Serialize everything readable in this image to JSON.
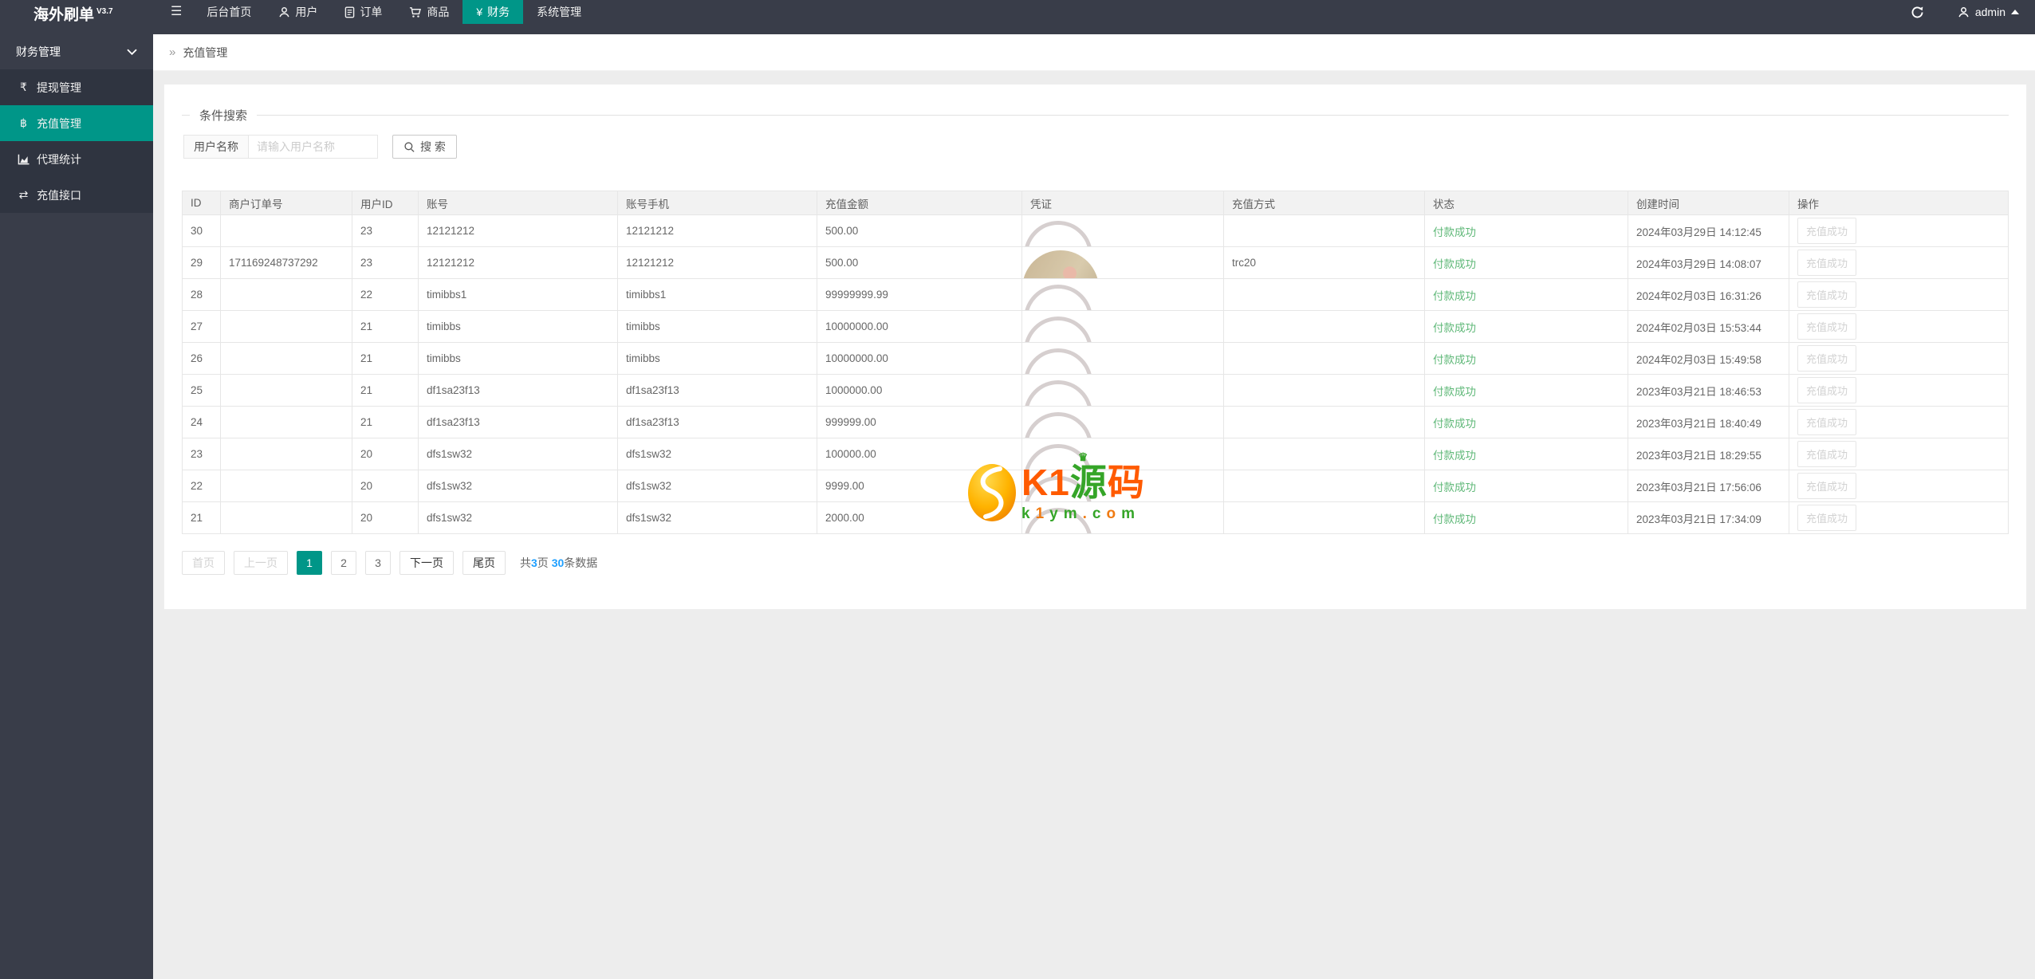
{
  "navbar": {
    "brand": "海外刷单",
    "version": "V3.7",
    "menu": [
      {
        "label": "后台首页",
        "icon": null,
        "glyph": null,
        "active": false
      },
      {
        "label": "用户",
        "icon": "user-icon",
        "glyph": null,
        "active": false
      },
      {
        "label": "订单",
        "icon": "order-icon",
        "glyph": null,
        "active": false
      },
      {
        "label": "商品",
        "icon": "cart-icon",
        "glyph": null,
        "active": false
      },
      {
        "label": "财务",
        "icon": "yen-icon",
        "glyph": "¥",
        "active": true
      },
      {
        "label": "系统管理",
        "icon": null,
        "glyph": null,
        "active": false
      }
    ],
    "hamburger_glyph": "☰",
    "user": "admin"
  },
  "sidebar": {
    "section_label": "财务管理",
    "items": [
      {
        "label": "提现管理",
        "icon": "withdraw-icon",
        "glyph": "₹",
        "active": false
      },
      {
        "label": "充值管理",
        "icon": "recharge-icon",
        "glyph": "฿",
        "active": true
      },
      {
        "label": "代理统计",
        "icon": "chart-icon",
        "glyph": null,
        "active": false
      },
      {
        "label": "充值接口",
        "icon": "exchange-icon",
        "glyph": "⇄",
        "active": false
      }
    ]
  },
  "breadcrumb": {
    "separator": "»",
    "title": "充值管理"
  },
  "search": {
    "legend": "条件搜索",
    "field_label": "用户名称",
    "placeholder": "请输入用户名称",
    "button_label": "搜 索"
  },
  "table": {
    "headers": [
      "ID",
      "商户订单号",
      "用户ID",
      "账号",
      "账号手机",
      "充值金额",
      "凭证",
      "充值方式",
      "状态",
      "创建时间",
      "操作"
    ],
    "rows": [
      {
        "id": "30",
        "order_no": "",
        "user_id": "23",
        "account": "12121212",
        "phone": "12121212",
        "amount": "500.00",
        "voucher": "ring",
        "method": "",
        "status": "付款成功",
        "created": "2024年03月29日 14:12:45",
        "action": "充值成功"
      },
      {
        "id": "29",
        "order_no": "171169248737292",
        "user_id": "23",
        "account": "12121212",
        "phone": "12121212",
        "amount": "500.00",
        "voucher": "photo",
        "method": "trc20",
        "status": "付款成功",
        "created": "2024年03月29日 14:08:07",
        "action": "充值成功"
      },
      {
        "id": "28",
        "order_no": "",
        "user_id": "22",
        "account": "timibbs1",
        "phone": "timibbs1",
        "amount": "99999999.99",
        "voucher": "ring",
        "method": "",
        "status": "付款成功",
        "created": "2024年02月03日 16:31:26",
        "action": "充值成功"
      },
      {
        "id": "27",
        "order_no": "",
        "user_id": "21",
        "account": "timibbs",
        "phone": "timibbs",
        "amount": "10000000.00",
        "voucher": "ring",
        "method": "",
        "status": "付款成功",
        "created": "2024年02月03日 15:53:44",
        "action": "充值成功"
      },
      {
        "id": "26",
        "order_no": "",
        "user_id": "21",
        "account": "timibbs",
        "phone": "timibbs",
        "amount": "10000000.00",
        "voucher": "ring",
        "method": "",
        "status": "付款成功",
        "created": "2024年02月03日 15:49:58",
        "action": "充值成功"
      },
      {
        "id": "25",
        "order_no": "",
        "user_id": "21",
        "account": "df1sa23f13",
        "phone": "df1sa23f13",
        "amount": "1000000.00",
        "voucher": "ring",
        "method": "",
        "status": "付款成功",
        "created": "2023年03月21日 18:46:53",
        "action": "充值成功"
      },
      {
        "id": "24",
        "order_no": "",
        "user_id": "21",
        "account": "df1sa23f13",
        "phone": "df1sa23f13",
        "amount": "999999.00",
        "voucher": "ring",
        "method": "",
        "status": "付款成功",
        "created": "2023年03月21日 18:40:49",
        "action": "充值成功"
      },
      {
        "id": "23",
        "order_no": "",
        "user_id": "20",
        "account": "dfs1sw32",
        "phone": "dfs1sw32",
        "amount": "100000.00",
        "voucher": "ring",
        "method": "",
        "status": "付款成功",
        "created": "2023年03月21日 18:29:55",
        "action": "充值成功"
      },
      {
        "id": "22",
        "order_no": "",
        "user_id": "20",
        "account": "dfs1sw32",
        "phone": "dfs1sw32",
        "amount": "9999.00",
        "voucher": "ring",
        "method": "",
        "status": "付款成功",
        "created": "2023年03月21日 17:56:06",
        "action": "充值成功"
      },
      {
        "id": "21",
        "order_no": "",
        "user_id": "20",
        "account": "dfs1sw32",
        "phone": "dfs1sw32",
        "amount": "2000.00",
        "voucher": "ring",
        "method": "",
        "status": "付款成功",
        "created": "2023年03月21日 17:34:09",
        "action": "充值成功"
      }
    ]
  },
  "pagination": {
    "first": "首页",
    "prev": "上一页",
    "pages": [
      "1",
      "2",
      "3"
    ],
    "current": "1",
    "next": "下一页",
    "last": "尾页",
    "info_prefix": "共",
    "total_pages": "3",
    "info_mid": "页 ",
    "total_records": "30",
    "info_suffix": "条数据"
  },
  "watermark": {
    "k1": "K1",
    "yuan": "源",
    "ma": "码",
    "crown": "♛",
    "domain": "k1ym.com"
  },
  "colors": {
    "accent": "#009688",
    "success_green": "#5FB878",
    "link_blue": "#1E9FFF",
    "navbar_bg": "#393d49",
    "sidebar_item_bg": "#2f3440"
  }
}
